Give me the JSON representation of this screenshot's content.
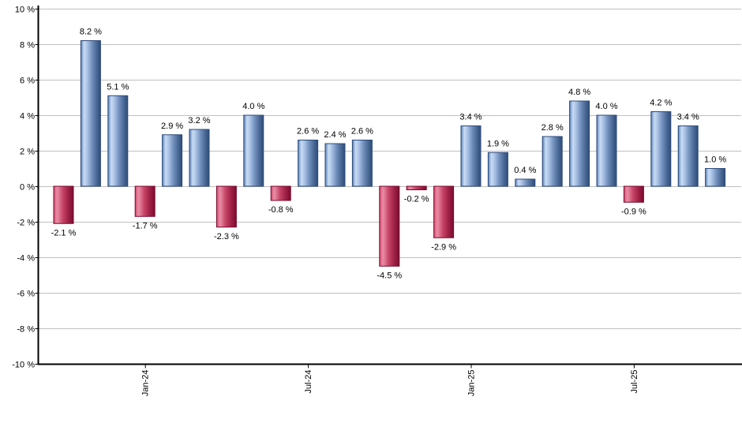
{
  "chart_data": {
    "type": "bar",
    "title": "",
    "ylabel": "",
    "xlabel": "",
    "ylim": [
      -10,
      10
    ],
    "y_ticks": [
      {
        "value": 10,
        "label": "10 %"
      },
      {
        "value": 8,
        "label": "8 %"
      },
      {
        "value": 6,
        "label": "6 %"
      },
      {
        "value": 4,
        "label": "4 %"
      },
      {
        "value": 2,
        "label": "2 %"
      },
      {
        "value": 0,
        "label": "0 %"
      },
      {
        "value": -2,
        "label": "-2 %"
      },
      {
        "value": -4,
        "label": "-4 %"
      },
      {
        "value": -6,
        "label": "-6 %"
      },
      {
        "value": -8,
        "label": "-8 %"
      },
      {
        "value": -10,
        "label": "-10 %"
      }
    ],
    "x_ticks": [
      {
        "bar_index": 3,
        "label": "Jan-24"
      },
      {
        "bar_index": 9,
        "label": "Jul-24"
      },
      {
        "bar_index": 15,
        "label": "Jan-25"
      },
      {
        "bar_index": 21,
        "label": "Jul-25"
      }
    ],
    "bars": [
      {
        "value": -2.1,
        "label": "-2.1 %"
      },
      {
        "value": 8.2,
        "label": "8.2 %"
      },
      {
        "value": 5.1,
        "label": "5.1 %"
      },
      {
        "value": -1.7,
        "label": "-1.7 %"
      },
      {
        "value": 2.9,
        "label": "2.9 %"
      },
      {
        "value": 3.2,
        "label": "3.2 %"
      },
      {
        "value": -2.3,
        "label": "-2.3 %"
      },
      {
        "value": 4.0,
        "label": "4.0 %"
      },
      {
        "value": -0.8,
        "label": "-0.8 %"
      },
      {
        "value": 2.6,
        "label": "2.6 %"
      },
      {
        "value": 2.4,
        "label": "2.4 %"
      },
      {
        "value": 2.6,
        "label": "2.6 %"
      },
      {
        "value": -4.5,
        "label": "-4.5 %"
      },
      {
        "value": -0.2,
        "label": "-0.2 %"
      },
      {
        "value": -2.9,
        "label": "-2.9 %"
      },
      {
        "value": 3.4,
        "label": "3.4 %"
      },
      {
        "value": 1.9,
        "label": "1.9 %"
      },
      {
        "value": 0.4,
        "label": "0.4 %"
      },
      {
        "value": 2.8,
        "label": "2.8 %"
      },
      {
        "value": 4.8,
        "label": "4.8 %"
      },
      {
        "value": 4.0,
        "label": "4.0 %"
      },
      {
        "value": -0.9,
        "label": "-0.9 %"
      },
      {
        "value": 4.2,
        "label": "4.2 %"
      },
      {
        "value": 3.4,
        "label": "3.4 %"
      },
      {
        "value": 1.0,
        "label": "1.0 %"
      }
    ],
    "positive_color": "#7e9cc8",
    "negative_color": "#c23058",
    "grid_color": "#c0c0c0",
    "axis_color": "#000000",
    "legend": "none",
    "grid": "horizontal"
  }
}
